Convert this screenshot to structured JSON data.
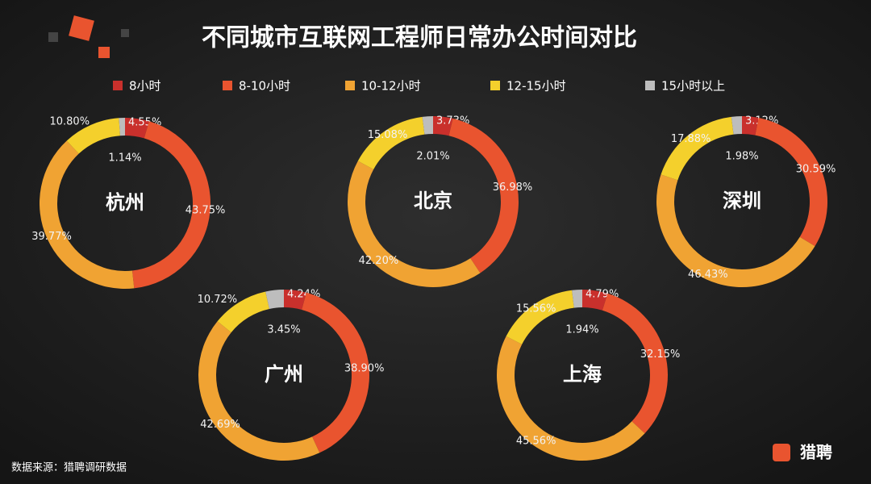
{
  "title": "不同城市互联网工程师日常办公时间对比",
  "source": "数据来源：猎聘调研数据",
  "logo": "猎聘",
  "chart_data": [
    {
      "type": "pie",
      "title": "杭州",
      "categories": [
        "8小时",
        "8-10小时",
        "10-12小时",
        "12-15小时",
        "15小时以上"
      ],
      "colors": [
        "#c9302c",
        "#e9542f",
        "#f0a333",
        "#f4d02c",
        "#bdbdbd"
      ],
      "values": [
        4.55,
        43.75,
        39.77,
        10.8,
        1.14
      ],
      "value_labels": [
        "4.55%",
        "43.75%",
        "39.77%",
        "10.80%",
        "1.14%"
      ]
    },
    {
      "type": "pie",
      "title": "北京",
      "categories": [
        "8小时",
        "8-10小时",
        "10-12小时",
        "12-15小时",
        "15小时以上"
      ],
      "colors": [
        "#c9302c",
        "#e9542f",
        "#f0a333",
        "#f4d02c",
        "#bdbdbd"
      ],
      "values": [
        3.73,
        36.98,
        42.2,
        15.08,
        2.01
      ],
      "value_labels": [
        "3.73%",
        "36.98%",
        "42.20%",
        "15.08%",
        "2.01%"
      ]
    },
    {
      "type": "pie",
      "title": "深圳",
      "categories": [
        "8小时",
        "8-10小时",
        "10-12小时",
        "12-15小时",
        "15小时以上"
      ],
      "colors": [
        "#c9302c",
        "#e9542f",
        "#f0a333",
        "#f4d02c",
        "#bdbdbd"
      ],
      "values": [
        3.12,
        30.59,
        46.43,
        17.88,
        1.98
      ],
      "value_labels": [
        "3.12%",
        "30.59%",
        "46.43%",
        "17.88%",
        "1.98%"
      ]
    },
    {
      "type": "pie",
      "title": "广州",
      "categories": [
        "8小时",
        "8-10小时",
        "10-12小时",
        "12-15小时",
        "15小时以上"
      ],
      "colors": [
        "#c9302c",
        "#e9542f",
        "#f0a333",
        "#f4d02c",
        "#bdbdbd"
      ],
      "values": [
        4.24,
        38.9,
        42.69,
        10.72,
        3.45
      ],
      "value_labels": [
        "4.24%",
        "38.90%",
        "42.69%",
        "10.72%",
        "3.45%"
      ]
    },
    {
      "type": "pie",
      "title": "上海",
      "categories": [
        "8小时",
        "8-10小时",
        "10-12小时",
        "12-15小时",
        "15小时以上"
      ],
      "colors": [
        "#c9302c",
        "#e9542f",
        "#f0a333",
        "#f4d02c",
        "#bdbdbd"
      ],
      "values": [
        4.79,
        32.15,
        45.56,
        15.56,
        1.94
      ],
      "value_labels": [
        "4.79%",
        "32.15%",
        "45.56%",
        "15.56%",
        "1.94%"
      ]
    }
  ]
}
